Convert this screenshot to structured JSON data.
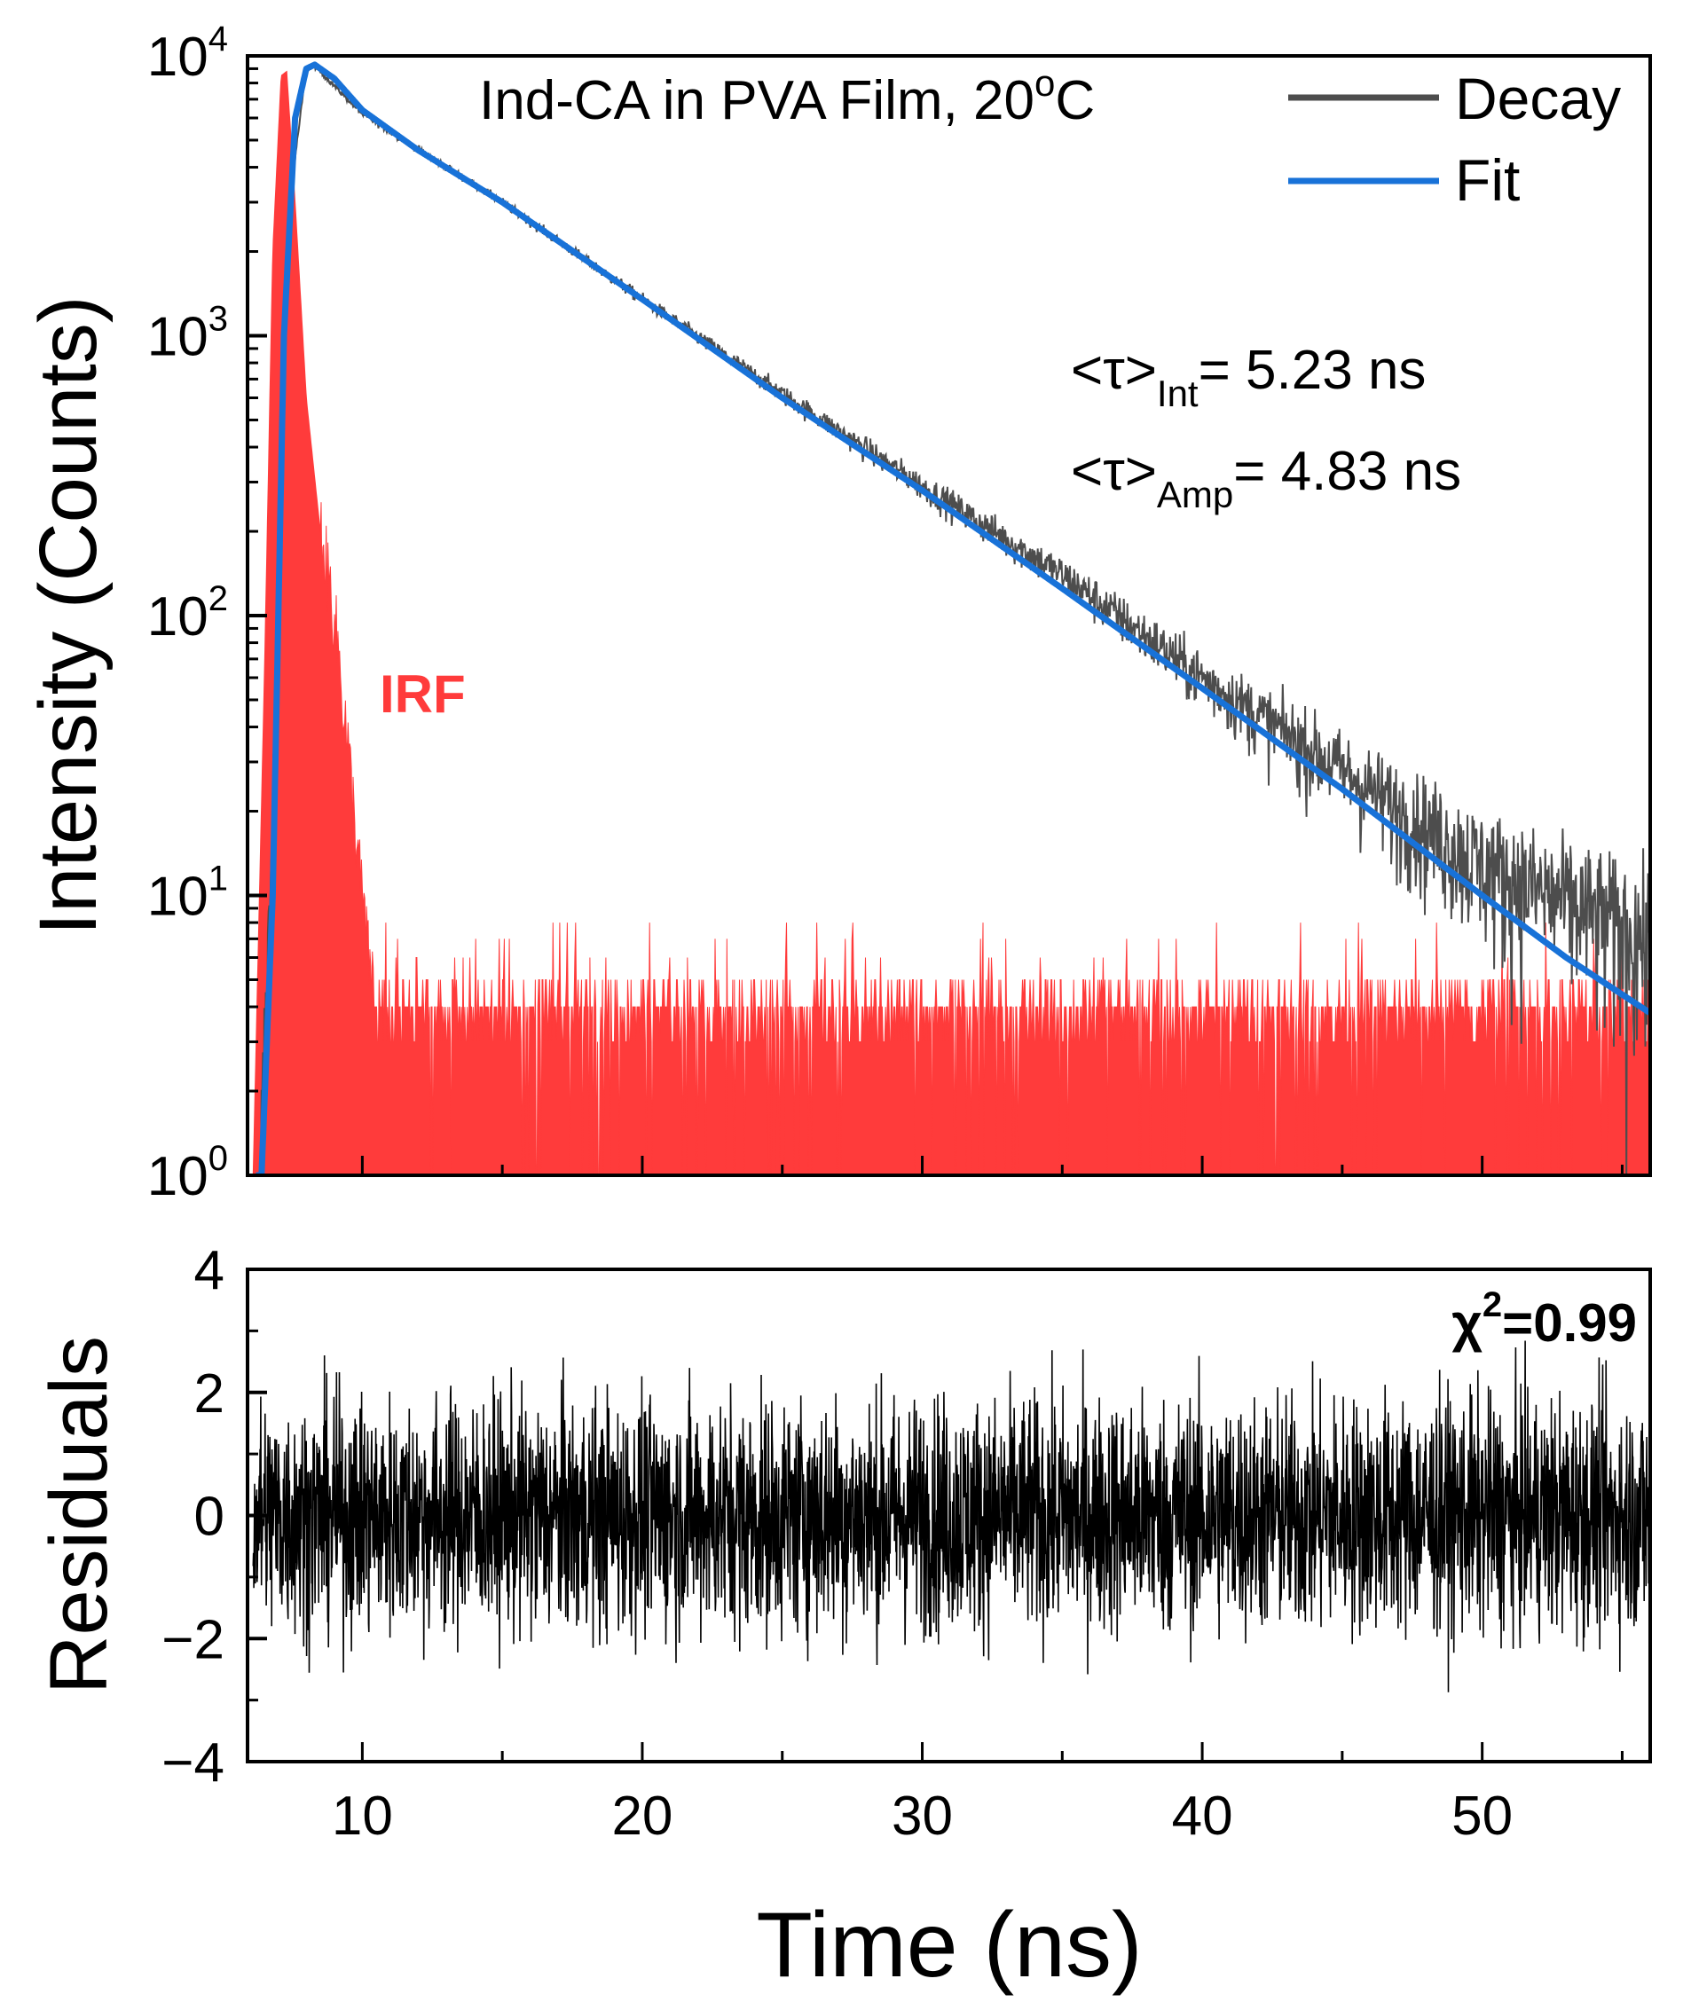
{
  "chart_data": [
    {
      "type": "line",
      "panel": "decay",
      "title": "Ind-CA in PVA Film, 20°C",
      "title_main": "Ind-CA in PVA Film, 20",
      "title_sup": "o",
      "title_end": "C",
      "ylabel": "Intensity (Counts)",
      "yscale": "log",
      "ylim": [
        1,
        10000
      ],
      "xlim": [
        5.9,
        56
      ],
      "y_ticks": [
        {
          "base": "10",
          "exp": "0",
          "value": 1
        },
        {
          "base": "10",
          "exp": "1",
          "value": 10
        },
        {
          "base": "10",
          "exp": "2",
          "value": 100
        },
        {
          "base": "10",
          "exp": "3",
          "value": 1000
        },
        {
          "base": "10",
          "exp": "4",
          "value": 10000
        }
      ],
      "legend": {
        "placement": "top-right",
        "entries": [
          "Decay",
          "Fit"
        ]
      },
      "series": [
        {
          "name": "Decay",
          "color": "#4d4d4d",
          "shape": "noisy-decay",
          "points": [
            [
              6.4,
              1
            ],
            [
              7.0,
              100
            ],
            [
              7.4,
              3000
            ],
            [
              8.0,
              9000
            ],
            [
              8.3,
              9200
            ],
            [
              10,
              6200
            ],
            [
              15,
              3000
            ],
            [
              20,
              1350
            ],
            [
              25,
              620
            ],
            [
              30,
              290
            ],
            [
              35,
              140
            ],
            [
              40,
              60
            ],
            [
              45,
              28
            ],
            [
              50,
              13
            ],
            [
              56,
              7
            ]
          ]
        },
        {
          "name": "Fit",
          "color": "#1872d8",
          "points": [
            [
              6.4,
              1
            ],
            [
              6.8,
              10
            ],
            [
              7.2,
              1000
            ],
            [
              7.6,
              6000
            ],
            [
              8.0,
              9000
            ],
            [
              8.3,
              9300
            ],
            [
              9,
              8300
            ],
            [
              10,
              6400
            ],
            [
              12,
              4600
            ],
            [
              15,
              3000
            ],
            [
              20,
              1350
            ],
            [
              25,
              600
            ],
            [
              30,
              280
            ],
            [
              35,
              125
            ],
            [
              40,
              55
            ],
            [
              45,
              24
            ],
            [
              50,
              10
            ],
            [
              53,
              6
            ],
            [
              56,
              3.8
            ]
          ]
        },
        {
          "name": "IRF",
          "color": "#ff3b3b",
          "shape": "filled-noisy",
          "points": [
            [
              6.1,
              1
            ],
            [
              6.5,
              60
            ],
            [
              6.8,
              2000
            ],
            [
              7.1,
              8500
            ],
            [
              7.3,
              8800
            ],
            [
              7.6,
              3000
            ],
            [
              8.0,
              600
            ],
            [
              8.5,
              200
            ],
            [
              9.0,
              100
            ],
            [
              9.4,
              40
            ],
            [
              9.8,
              15
            ],
            [
              10.2,
              6
            ],
            [
              10.5,
              4
            ],
            [
              56,
              4
            ]
          ]
        }
      ],
      "annotations": {
        "irf_label": "IRF",
        "tau_int_prefix": "<τ>",
        "tau_int_sub": "Int",
        "tau_int_value": "= 5.23 ns",
        "tau_amp_prefix": "<τ>",
        "tau_amp_sub": "Amp",
        "tau_amp_value": "= 4.83 ns"
      }
    },
    {
      "type": "line",
      "panel": "residuals",
      "ylabel": "Residuals",
      "xlabel": "Time (ns)",
      "ylim": [
        -4,
        4
      ],
      "xlim": [
        5.9,
        56
      ],
      "y_ticks": [
        -4,
        -2,
        0,
        2,
        4
      ],
      "y_tick_labels": [
        "−4",
        "−2",
        "0",
        "2",
        "4"
      ],
      "x_ticks": [
        10,
        20,
        30,
        40,
        50
      ],
      "x_tick_labels": [
        "10",
        "20",
        "30",
        "40",
        "50"
      ],
      "series": [
        {
          "name": "Residuals",
          "color": "#000000",
          "shape": "noise",
          "mean": 0,
          "std": 0.95
        }
      ],
      "chi_sq_label": "χ",
      "chi_sq_sup": "2",
      "chi_sq_value": "=0.99"
    }
  ]
}
